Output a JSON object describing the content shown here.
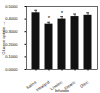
{
  "chart_data": {
    "type": "bar",
    "categories": [
      "Saline",
      "Intralipid",
      "Linoleic",
      "Stearic",
      "Oleic"
    ],
    "values": [
      0.45,
      0.36,
      0.4,
      0.42,
      0.43
    ],
    "errors": [
      0.02,
      0.015,
      0.02,
      0.02,
      0.02
    ],
    "color": "#111111",
    "x_label": "Infusion",
    "y_label": "Glucose uptake",
    "ylim": [
      0,
      0.5
    ],
    "yticks": [
      {
        "value": 0,
        "label": "0.0000"
      },
      {
        "value": 0.1,
        "label": "0.1000"
      },
      {
        "value": 0.2,
        "label": "0.2000"
      },
      {
        "value": 0.3,
        "label": "0.3000"
      },
      {
        "value": 0.4,
        "label": "0.4000"
      },
      {
        "value": 0.5,
        "label": "0.5000"
      }
    ],
    "annotations": [
      {
        "category": "Intralipid",
        "text": "*"
      },
      {
        "category": "Linoleic",
        "text": "*"
      }
    ]
  }
}
